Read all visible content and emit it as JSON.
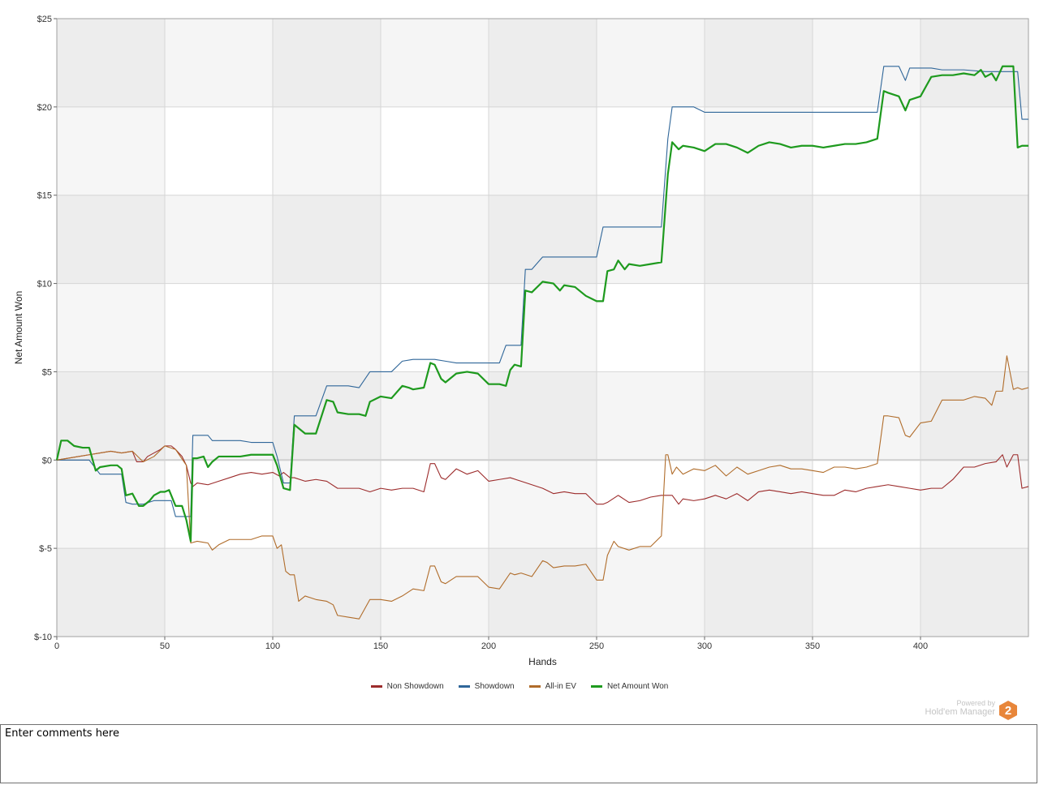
{
  "chart_data": {
    "type": "line",
    "title": "",
    "xlabel": "Hands",
    "ylabel": "Net Amount Won",
    "xlim": [
      0,
      450
    ],
    "ylim": [
      -10,
      25
    ],
    "xticks": [
      0,
      50,
      100,
      150,
      200,
      250,
      300,
      350,
      400
    ],
    "xtick_labels": [
      "0",
      "50",
      "100",
      "150",
      "200",
      "250",
      "300",
      "350",
      "400"
    ],
    "yticks": [
      -10,
      -5,
      0,
      5,
      10,
      15,
      20,
      25
    ],
    "ytick_labels": [
      "$-10",
      "$-5",
      "$0",
      "$5",
      "$10",
      "$15",
      "$20",
      "$25"
    ],
    "grid": true,
    "legend_position": "bottom-center",
    "series": [
      {
        "name": "Non Showdown",
        "color": "#9c2b2b",
        "x": [
          0,
          10,
          15,
          20,
          25,
          30,
          35,
          37,
          40,
          42,
          45,
          48,
          50,
          53,
          55,
          58,
          60,
          62,
          63,
          65,
          70,
          75,
          80,
          85,
          90,
          95,
          100,
          103,
          105,
          108,
          110,
          115,
          120,
          125,
          130,
          135,
          140,
          145,
          150,
          155,
          160,
          165,
          170,
          173,
          175,
          178,
          180,
          185,
          190,
          195,
          200,
          205,
          210,
          215,
          220,
          225,
          230,
          235,
          240,
          245,
          250,
          253,
          255,
          260,
          265,
          270,
          275,
          280,
          283,
          285,
          288,
          290,
          295,
          300,
          305,
          310,
          315,
          320,
          325,
          330,
          335,
          340,
          345,
          350,
          355,
          360,
          365,
          370,
          375,
          380,
          385,
          390,
          395,
          400,
          405,
          410,
          415,
          420,
          425,
          430,
          435,
          438,
          440,
          443,
          445,
          447,
          450
        ],
        "values": [
          0,
          0.2,
          0.3,
          0.4,
          0.5,
          0.4,
          0.5,
          -0.1,
          -0.1,
          0.2,
          0.4,
          0.6,
          0.8,
          0.8,
          0.6,
          0.2,
          -0.3,
          -1.3,
          -1.5,
          -1.3,
          -1.4,
          -1.2,
          -1.0,
          -0.8,
          -0.7,
          -0.8,
          -0.7,
          -0.9,
          -0.7,
          -1.0,
          -1.0,
          -1.2,
          -1.1,
          -1.2,
          -1.6,
          -1.6,
          -1.6,
          -1.8,
          -1.6,
          -1.7,
          -1.6,
          -1.6,
          -1.8,
          -0.2,
          -0.2,
          -1.0,
          -1.1,
          -0.5,
          -0.8,
          -0.6,
          -1.2,
          -1.1,
          -1.0,
          -1.2,
          -1.4,
          -1.6,
          -1.9,
          -1.8,
          -1.9,
          -1.9,
          -2.5,
          -2.5,
          -2.4,
          -2.0,
          -2.4,
          -2.3,
          -2.1,
          -2.0,
          -2.0,
          -2.0,
          -2.5,
          -2.2,
          -2.3,
          -2.2,
          -2.0,
          -2.2,
          -1.9,
          -2.3,
          -1.8,
          -1.7,
          -1.8,
          -1.9,
          -1.8,
          -1.9,
          -2.0,
          -2.0,
          -1.7,
          -1.8,
          -1.6,
          -1.5,
          -1.4,
          -1.5,
          -1.6,
          -1.7,
          -1.6,
          -1.6,
          -1.1,
          -0.4,
          -0.4,
          -0.2,
          -0.1,
          0.3,
          -0.4,
          0.3,
          0.3,
          -1.6,
          -1.5
        ]
      },
      {
        "name": "Showdown",
        "color": "#2f6699",
        "x": [
          0,
          10,
          15,
          20,
          25,
          30,
          32,
          35,
          40,
          45,
          48,
          50,
          53,
          55,
          58,
          60,
          62,
          63,
          65,
          70,
          72,
          75,
          80,
          85,
          90,
          95,
          100,
          102,
          105,
          108,
          110,
          115,
          120,
          125,
          130,
          135,
          140,
          145,
          150,
          155,
          160,
          165,
          170,
          175,
          180,
          185,
          190,
          195,
          200,
          205,
          208,
          210,
          215,
          217,
          220,
          225,
          230,
          235,
          240,
          245,
          250,
          253,
          255,
          260,
          265,
          270,
          275,
          280,
          283,
          285,
          290,
          295,
          300,
          305,
          310,
          320,
          330,
          340,
          350,
          360,
          370,
          380,
          383,
          385,
          390,
          393,
          395,
          400,
          405,
          410,
          420,
          430,
          440,
          445,
          447,
          450
        ],
        "values": [
          0,
          0,
          0,
          -0.8,
          -0.8,
          -0.8,
          -2.4,
          -2.5,
          -2.5,
          -2.3,
          -2.3,
          -2.3,
          -2.3,
          -3.2,
          -3.2,
          -3.2,
          -3.2,
          1.4,
          1.4,
          1.4,
          1.1,
          1.1,
          1.1,
          1.1,
          1.0,
          1.0,
          1.0,
          0.2,
          -1.3,
          -1.3,
          2.5,
          2.5,
          2.5,
          4.2,
          4.2,
          4.2,
          4.1,
          5.0,
          5.0,
          5.0,
          5.6,
          5.7,
          5.7,
          5.7,
          5.6,
          5.5,
          5.5,
          5.5,
          5.5,
          5.5,
          6.5,
          6.5,
          6.5,
          10.8,
          10.8,
          11.5,
          11.5,
          11.5,
          11.5,
          11.5,
          11.5,
          13.2,
          13.2,
          13.2,
          13.2,
          13.2,
          13.2,
          13.2,
          18.2,
          20.0,
          20.0,
          20.0,
          19.7,
          19.7,
          19.7,
          19.7,
          19.7,
          19.7,
          19.7,
          19.7,
          19.7,
          19.7,
          22.3,
          22.3,
          22.3,
          21.5,
          22.2,
          22.2,
          22.2,
          22.1,
          22.1,
          22.0,
          22.0,
          22.0,
          19.3,
          19.3
        ]
      },
      {
        "name": "All-in EV",
        "color": "#b06c2a",
        "x": [
          0,
          10,
          15,
          20,
          25,
          30,
          35,
          40,
          45,
          50,
          55,
          60,
          62,
          65,
          70,
          72,
          75,
          80,
          85,
          90,
          95,
          100,
          102,
          104,
          106,
          108,
          110,
          112,
          115,
          120,
          125,
          128,
          130,
          135,
          140,
          145,
          150,
          155,
          160,
          165,
          170,
          173,
          175,
          178,
          180,
          185,
          190,
          195,
          200,
          205,
          210,
          212,
          215,
          220,
          225,
          227,
          230,
          235,
          240,
          245,
          250,
          253,
          255,
          258,
          260,
          265,
          270,
          275,
          280,
          282,
          283,
          285,
          287,
          290,
          295,
          300,
          305,
          310,
          315,
          320,
          325,
          330,
          335,
          340,
          345,
          350,
          355,
          360,
          365,
          370,
          375,
          380,
          383,
          385,
          390,
          393,
          395,
          400,
          405,
          410,
          415,
          420,
          425,
          430,
          433,
          435,
          438,
          440,
          443,
          445,
          447,
          450
        ],
        "values": [
          0,
          0.2,
          0.3,
          0.4,
          0.5,
          0.4,
          0.5,
          -0.1,
          0.2,
          0.8,
          0.6,
          -0.3,
          -4.7,
          -4.6,
          -4.7,
          -5.1,
          -4.8,
          -4.5,
          -4.5,
          -4.5,
          -4.3,
          -4.3,
          -5.0,
          -4.8,
          -6.3,
          -6.5,
          -6.5,
          -8.0,
          -7.7,
          -7.9,
          -8.0,
          -8.2,
          -8.8,
          -8.9,
          -9.0,
          -7.9,
          -7.9,
          -8.0,
          -7.7,
          -7.3,
          -7.4,
          -6.0,
          -6.0,
          -6.9,
          -7.0,
          -6.6,
          -6.6,
          -6.6,
          -7.2,
          -7.3,
          -6.4,
          -6.5,
          -6.4,
          -6.6,
          -5.7,
          -5.8,
          -6.1,
          -6.0,
          -6.0,
          -5.9,
          -6.8,
          -6.8,
          -5.4,
          -4.6,
          -4.9,
          -5.1,
          -4.9,
          -4.9,
          -4.3,
          0.3,
          0.3,
          -0.8,
          -0.4,
          -0.8,
          -0.5,
          -0.6,
          -0.3,
          -0.9,
          -0.4,
          -0.8,
          -0.6,
          -0.4,
          -0.3,
          -0.5,
          -0.5,
          -0.6,
          -0.7,
          -0.4,
          -0.4,
          -0.5,
          -0.4,
          -0.2,
          2.5,
          2.5,
          2.4,
          1.4,
          1.3,
          2.1,
          2.2,
          3.4,
          3.4,
          3.4,
          3.6,
          3.5,
          3.1,
          3.9,
          3.9,
          5.9,
          4.0,
          4.1,
          4.0,
          4.1
        ]
      },
      {
        "name": "Net Amount Won",
        "color": "#1e9a1e",
        "x": [
          0,
          2,
          5,
          8,
          12,
          15,
          18,
          20,
          25,
          28,
          30,
          32,
          35,
          38,
          40,
          43,
          45,
          48,
          50,
          52,
          55,
          58,
          60,
          62,
          63,
          65,
          68,
          70,
          72,
          75,
          80,
          85,
          90,
          95,
          100,
          102,
          105,
          108,
          110,
          112,
          115,
          120,
          125,
          128,
          130,
          135,
          140,
          143,
          145,
          150,
          155,
          160,
          163,
          165,
          170,
          173,
          175,
          178,
          180,
          185,
          190,
          195,
          200,
          205,
          208,
          210,
          212,
          215,
          217,
          220,
          225,
          230,
          233,
          235,
          240,
          245,
          250,
          253,
          255,
          258,
          260,
          263,
          265,
          270,
          275,
          280,
          283,
          285,
          288,
          290,
          295,
          300,
          305,
          310,
          315,
          320,
          325,
          330,
          335,
          340,
          345,
          350,
          355,
          360,
          365,
          370,
          375,
          380,
          383,
          385,
          390,
          393,
          395,
          400,
          405,
          410,
          415,
          420,
          425,
          428,
          430,
          433,
          435,
          438,
          440,
          443,
          445,
          447,
          450
        ],
        "values": [
          0,
          1.1,
          1.1,
          0.8,
          0.7,
          0.7,
          -0.6,
          -0.4,
          -0.3,
          -0.3,
          -0.5,
          -2.0,
          -1.9,
          -2.6,
          -2.6,
          -2.3,
          -2.0,
          -1.8,
          -1.8,
          -1.7,
          -2.6,
          -2.6,
          -3.4,
          -4.6,
          0.1,
          0.1,
          0.2,
          -0.4,
          -0.1,
          0.2,
          0.2,
          0.2,
          0.3,
          0.3,
          0.3,
          -0.3,
          -1.6,
          -1.7,
          2.0,
          1.8,
          1.5,
          1.5,
          3.4,
          3.3,
          2.7,
          2.6,
          2.6,
          2.5,
          3.3,
          3.6,
          3.5,
          4.2,
          4.1,
          4.0,
          4.1,
          5.5,
          5.4,
          4.6,
          4.4,
          4.9,
          5.0,
          4.9,
          4.3,
          4.3,
          4.2,
          5.1,
          5.4,
          5.3,
          9.6,
          9.5,
          10.1,
          10.0,
          9.6,
          9.9,
          9.8,
          9.3,
          9.0,
          9.0,
          10.7,
          10.8,
          11.3,
          10.8,
          11.1,
          11.0,
          11.1,
          11.2,
          16.2,
          18.0,
          17.6,
          17.8,
          17.7,
          17.5,
          17.9,
          17.9,
          17.7,
          17.4,
          17.8,
          18.0,
          17.9,
          17.7,
          17.8,
          17.8,
          17.7,
          17.8,
          17.9,
          17.9,
          18.0,
          18.2,
          20.9,
          20.8,
          20.6,
          19.8,
          20.4,
          20.6,
          21.7,
          21.8,
          21.8,
          21.9,
          21.8,
          22.1,
          21.7,
          21.9,
          21.5,
          22.3,
          22.3,
          22.3,
          17.7,
          17.8,
          17.8
        ]
      }
    ]
  },
  "branding": {
    "powered_by": "Powered by",
    "product": "Hold'em Manager",
    "logo_glyph": "2",
    "logo_color": "#e8863a"
  },
  "comments": {
    "placeholder": "Enter comments here"
  }
}
